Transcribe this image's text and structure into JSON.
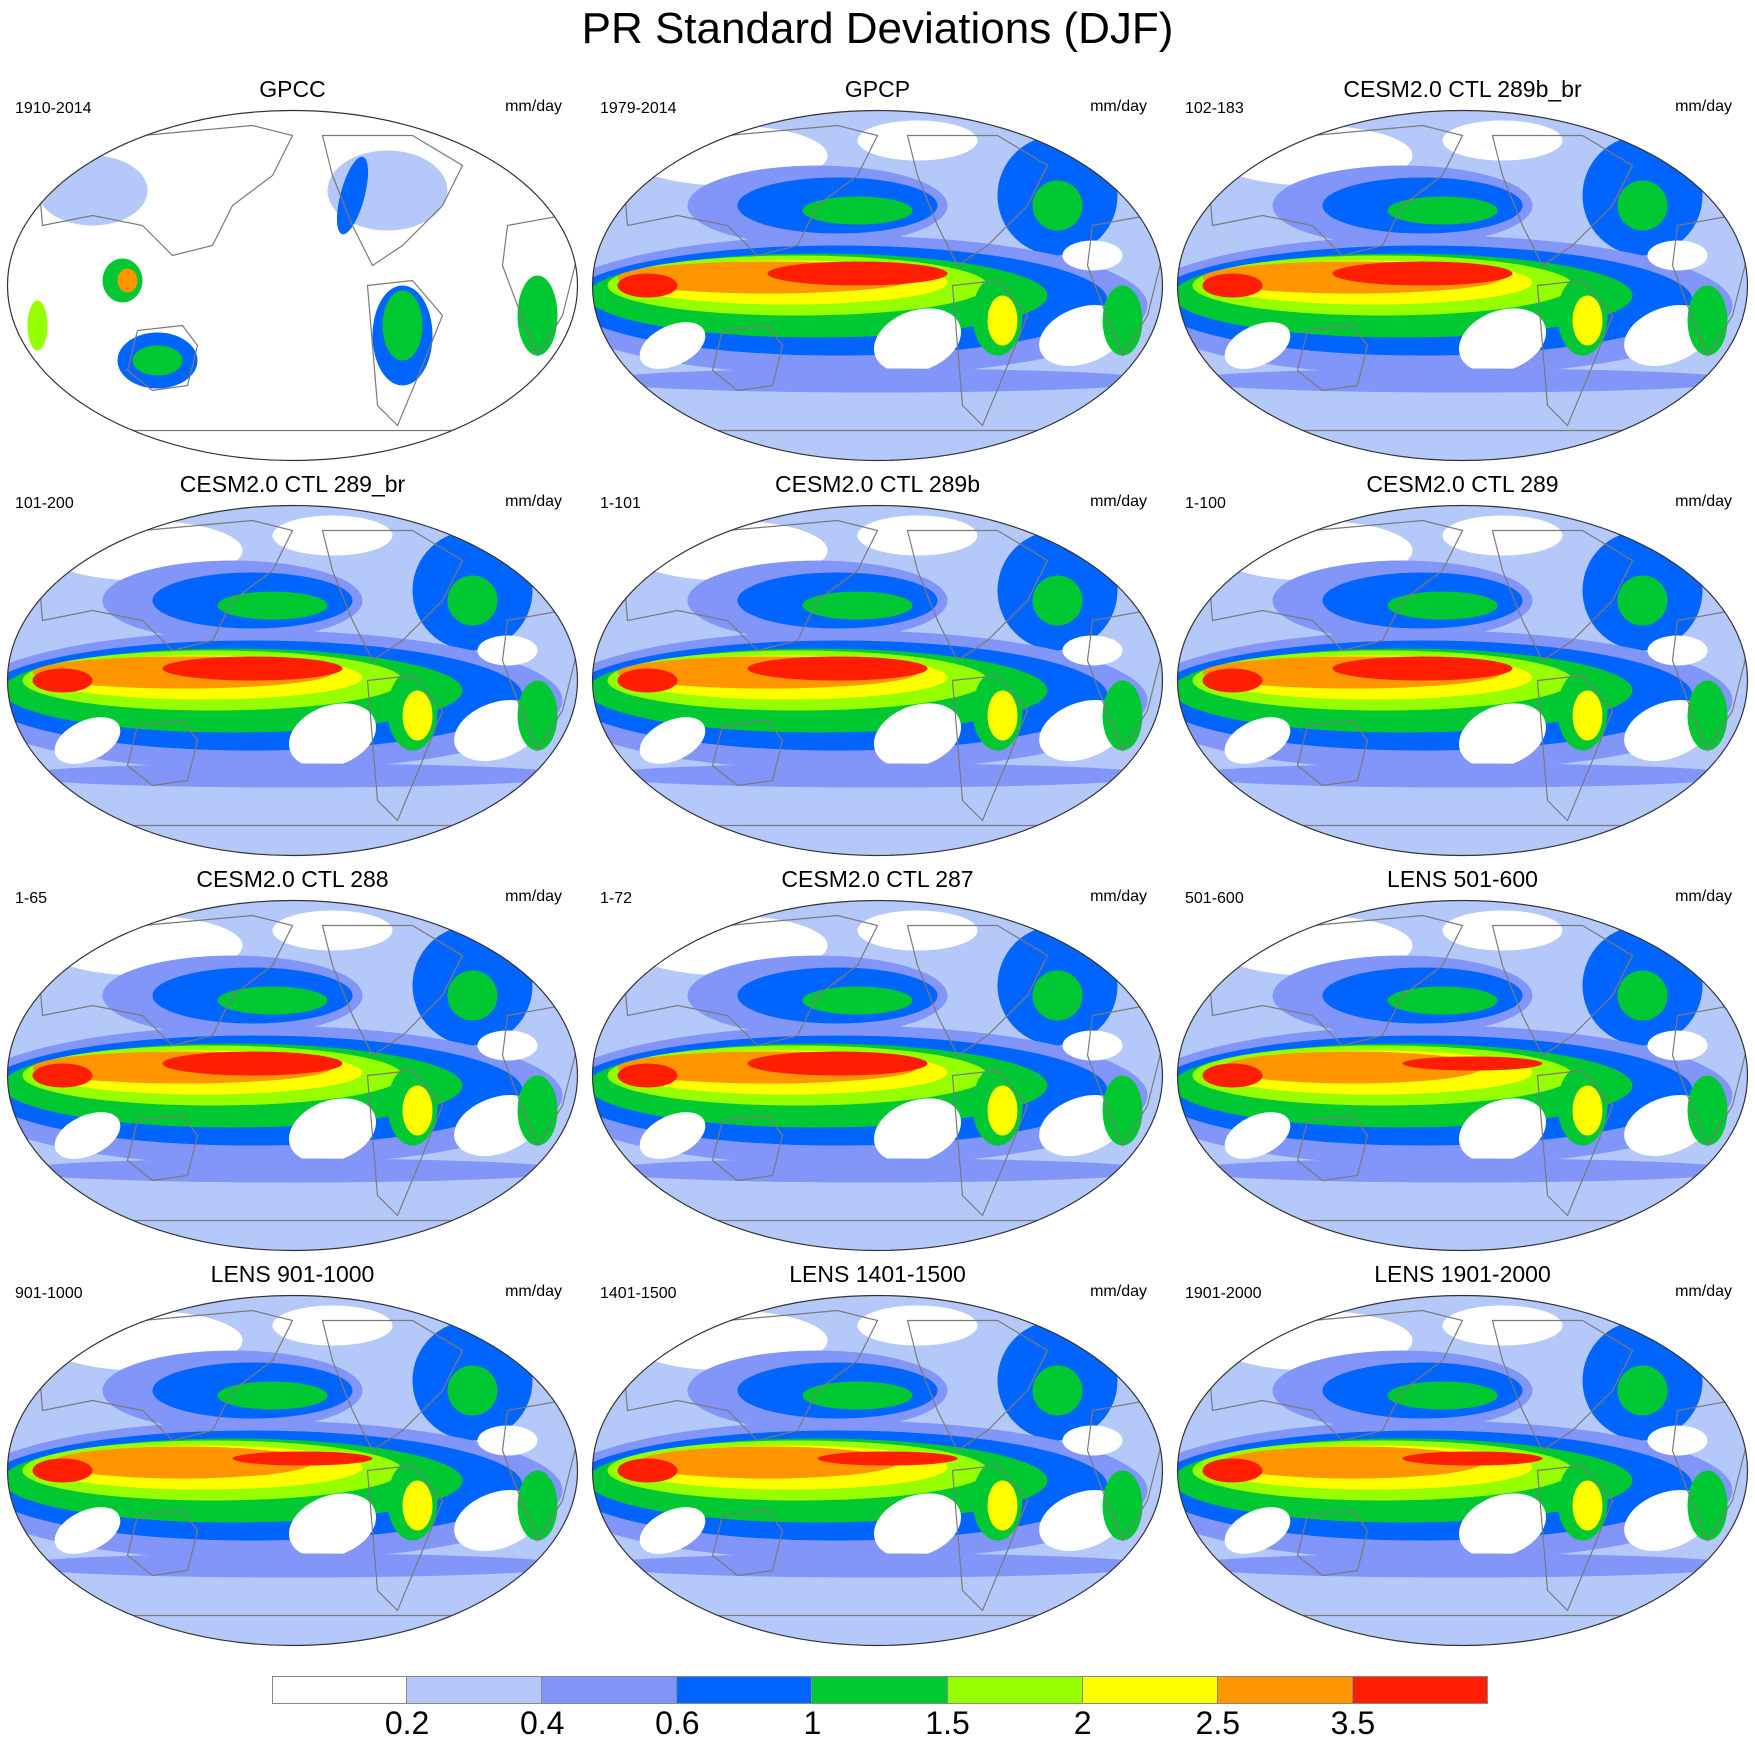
{
  "title": "PR Standard Deviations (DJF)",
  "units": "mm/day",
  "panels": [
    {
      "title": "GPCC",
      "period": "1910-2014",
      "style": "obs_land"
    },
    {
      "title": "GPCP",
      "period": "1979-2014",
      "style": "obs"
    },
    {
      "title": "CESM2.0 CTL 289b_br",
      "period": "102-183",
      "style": "cesm"
    },
    {
      "title": "CESM2.0 CTL 289_br",
      "period": "101-200",
      "style": "cesm"
    },
    {
      "title": "CESM2.0 CTL 289b",
      "period": "1-101",
      "style": "cesm"
    },
    {
      "title": "CESM2.0 CTL 289",
      "period": "1-100",
      "style": "cesm"
    },
    {
      "title": "CESM2.0 CTL 288",
      "period": "1-65",
      "style": "cesm"
    },
    {
      "title": "CESM2.0 CTL 287",
      "period": "1-72",
      "style": "cesm"
    },
    {
      "title": "LENS 501-600",
      "period": "501-600",
      "style": "lens"
    },
    {
      "title": "LENS 901-1000",
      "period": "901-1000",
      "style": "lens"
    },
    {
      "title": "LENS 1401-1500",
      "period": "1401-1500",
      "style": "lens"
    },
    {
      "title": "LENS 1901-2000",
      "period": "1901-2000",
      "style": "lens"
    }
  ],
  "colorbar": {
    "colors": [
      "#ffffff",
      "#b4c8fa",
      "#8296f9",
      "#0064ff",
      "#00c832",
      "#96ff00",
      "#ffff00",
      "#ff9600",
      "#ff1e00"
    ],
    "labels": [
      "0.2",
      "0.4",
      "0.6",
      "1",
      "1.5",
      "2",
      "2.5",
      "3.5"
    ]
  }
}
